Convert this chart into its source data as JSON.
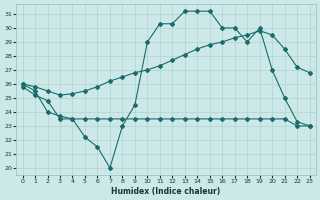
{
  "xlabel": "Humidex (Indice chaleur)",
  "bg_color": "#cce8e8",
  "grid_color": "#aed4d0",
  "line_color": "#1a6b6b",
  "xlim": [
    -0.5,
    23.5
  ],
  "ylim": [
    19.5,
    31.7
  ],
  "xticks": [
    0,
    1,
    2,
    3,
    4,
    5,
    6,
    7,
    8,
    9,
    10,
    11,
    12,
    13,
    14,
    15,
    16,
    17,
    18,
    19,
    20,
    21,
    22,
    23
  ],
  "yticks": [
    20,
    21,
    22,
    23,
    24,
    25,
    26,
    27,
    28,
    29,
    30,
    31
  ],
  "line1_x": [
    0,
    1,
    2,
    3,
    4,
    5,
    6,
    7,
    8,
    9,
    10,
    11,
    12,
    13,
    14,
    15,
    16,
    17,
    18,
    19,
    20,
    21,
    22,
    23
  ],
  "line1_y": [
    26.0,
    25.5,
    24.0,
    23.7,
    23.5,
    22.2,
    21.5,
    20.0,
    23.0,
    24.5,
    29.0,
    30.3,
    30.3,
    31.2,
    31.2,
    31.2,
    30.0,
    30.0,
    29.0,
    30.0,
    27.0,
    25.0,
    23.3,
    23.0
  ],
  "line2_x": [
    0,
    1,
    2,
    3,
    4,
    5,
    6,
    7,
    8,
    9,
    10,
    11,
    12,
    13,
    14,
    15,
    16,
    17,
    18,
    19,
    20,
    21,
    22,
    23
  ],
  "line2_y": [
    25.8,
    25.2,
    24.8,
    23.5,
    23.5,
    23.5,
    23.5,
    23.5,
    23.5,
    23.5,
    23.5,
    23.5,
    23.5,
    23.5,
    23.5,
    23.5,
    23.5,
    23.5,
    23.5,
    23.5,
    23.5,
    23.5,
    23.0,
    23.0
  ],
  "line3_x": [
    0,
    1,
    2,
    3,
    4,
    5,
    6,
    7,
    8,
    9,
    10,
    11,
    12,
    13,
    14,
    15,
    16,
    17,
    18,
    19,
    20,
    21,
    22,
    23
  ],
  "line3_y": [
    26.0,
    25.8,
    25.5,
    25.2,
    25.3,
    25.5,
    25.8,
    26.2,
    26.5,
    26.8,
    27.0,
    27.3,
    27.7,
    28.1,
    28.5,
    28.8,
    29.0,
    29.3,
    29.5,
    29.8,
    29.5,
    28.5,
    27.2,
    26.8
  ]
}
